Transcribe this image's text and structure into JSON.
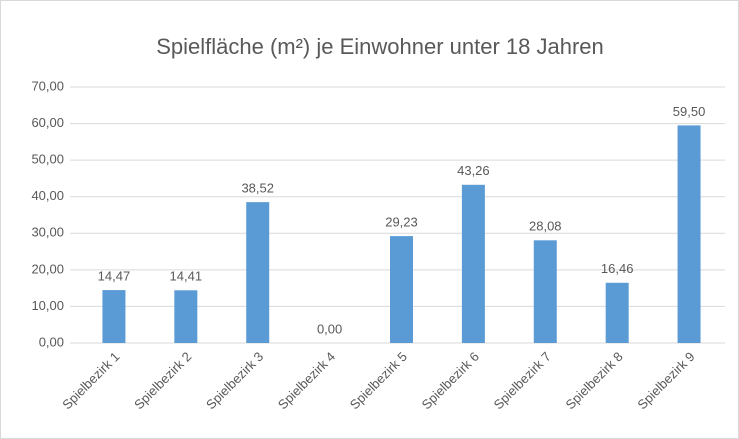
{
  "chart_data": {
    "type": "bar",
    "title": "Spielfläche (m²) je Einwohner unter 18 Jahren",
    "categories": [
      "Spielbezirk 1",
      "Spielbezirk 2",
      "Spielbezirk 3",
      "Spielbezirk 4",
      "Spielbezirk 5",
      "Spielbezirk 6",
      "Spielbezirk 7",
      "Spielbezirk 8",
      "Spielbezirk 9"
    ],
    "values": [
      14.47,
      14.41,
      38.52,
      0,
      29.23,
      43.26,
      28.08,
      16.46,
      59.5
    ],
    "value_labels": [
      "14,47",
      "14,41",
      "38,52",
      "0,00",
      "29,23",
      "43,26",
      "28,08",
      "16,46",
      "59,50"
    ],
    "color": "#5b9bd5",
    "ylim": [
      0,
      70
    ],
    "yticks": [
      {
        "value": 0,
        "label": "0,00"
      },
      {
        "value": 10,
        "label": "10,00"
      },
      {
        "value": 20,
        "label": "20,00"
      },
      {
        "value": 30,
        "label": "30,00"
      },
      {
        "value": 40,
        "label": "40,00"
      },
      {
        "value": 50,
        "label": "50,00"
      },
      {
        "value": 60,
        "label": "60,00"
      },
      {
        "value": 70,
        "label": "70,00"
      }
    ],
    "grid": true
  }
}
